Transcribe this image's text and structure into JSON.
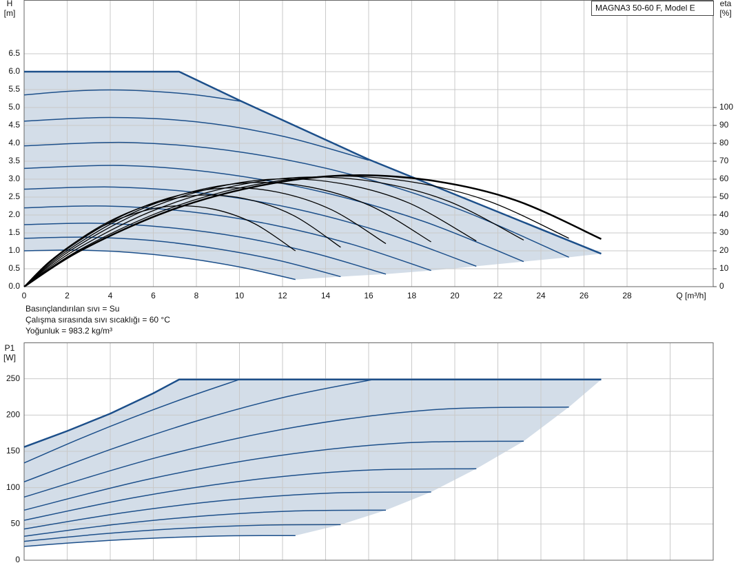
{
  "chart_data": [
    {
      "type": "line",
      "title": "MAGNA3 50-60 F, Model E",
      "ylabel": [
        "H",
        "[m]"
      ],
      "y2label": [
        "eta",
        "[%]"
      ],
      "xlabel": "Q [m³/h]",
      "annotations": [
        "Basınçlandırılan sıvı = Su",
        "Çalışma sırasında sıvı sıcaklığı = 60 °C",
        "Yoğunluk = 983.2 kg/m³"
      ],
      "xlim": [
        0,
        32
      ],
      "xticks": [
        0,
        2,
        4,
        6,
        8,
        10,
        12,
        14,
        16,
        18,
        20,
        22,
        24,
        26,
        28
      ],
      "xtick_labels": true,
      "ylim": [
        0,
        8
      ],
      "yticks": [
        {
          "value": 0,
          "label": "0.0"
        },
        0.5,
        {
          "value": 1,
          "label": "1.0"
        },
        1.5,
        {
          "value": 2,
          "label": "2.0"
        },
        2.5,
        {
          "value": 3,
          "label": "3.0"
        },
        3.5,
        {
          "value": 4,
          "label": "4.0"
        },
        4.5,
        {
          "value": 5,
          "label": "5.0"
        },
        5.5,
        {
          "value": 6,
          "label": "6.0"
        },
        6.5
      ],
      "y2lim": [
        0,
        160
      ],
      "y2ticks": [
        0,
        10,
        20,
        30,
        40,
        50,
        60,
        70,
        80,
        90,
        100
      ],
      "grid": true,
      "fill_color": "#d3dde8",
      "series": [
        {
          "color": "#1c4f8a",
          "line_width": 2.5,
          "smooth": false,
          "x": [
            0,
            7.2,
            10.1,
            16,
            26.8
          ],
          "values": [
            6,
            6,
            5.17,
            3.55,
            0.92
          ]
        },
        {
          "color": "#1c4f8a",
          "line_width": 1.5,
          "smooth": true,
          "x": [
            0,
            2,
            4,
            6,
            8,
            10.1
          ],
          "values": [
            5.35,
            5.45,
            5.49,
            5.45,
            5.35,
            5.17
          ]
        },
        {
          "color": "#1c4f8a",
          "line_width": 1.5,
          "smooth": true,
          "x": [
            0,
            4,
            8,
            12,
            16
          ],
          "values": [
            4.62,
            4.72,
            4.6,
            4.2,
            3.53
          ]
        },
        {
          "color": "#1c4f8a",
          "line_width": 1.5,
          "smooth": true,
          "x": [
            0,
            5.06,
            10.12,
            15.18,
            20.24,
            25.3
          ],
          "values": [
            3.93,
            4.02,
            3.75,
            3.13,
            2.15,
            0.82
          ]
        },
        {
          "color": "#1c4f8a",
          "line_width": 1.5,
          "smooth": true,
          "x": [
            0,
            4.64,
            9.28,
            13.92,
            18.56,
            23.2
          ],
          "values": [
            3.3,
            3.38,
            3.15,
            2.63,
            1.82,
            0.7
          ]
        },
        {
          "color": "#1c4f8a",
          "line_width": 1.5,
          "smooth": true,
          "x": [
            0,
            4.2,
            8.4,
            12.6,
            16.8,
            21
          ],
          "values": [
            2.72,
            2.78,
            2.6,
            2.17,
            1.49,
            0.57
          ]
        },
        {
          "color": "#1c4f8a",
          "line_width": 1.5,
          "smooth": true,
          "x": [
            0,
            3.78,
            7.56,
            11.34,
            15.12,
            18.9
          ],
          "values": [
            2.2,
            2.25,
            2.1,
            1.75,
            1.2,
            0.45
          ]
        },
        {
          "color": "#1c4f8a",
          "line_width": 1.5,
          "smooth": true,
          "x": [
            0,
            3.36,
            6.72,
            10.08,
            13.44,
            16.8
          ],
          "values": [
            1.73,
            1.77,
            1.65,
            1.38,
            0.94,
            0.35
          ]
        },
        {
          "color": "#1c4f8a",
          "line_width": 1.5,
          "smooth": true,
          "x": [
            0,
            2.94,
            5.88,
            8.82,
            11.76,
            14.7
          ],
          "values": [
            1.35,
            1.38,
            1.29,
            1.07,
            0.74,
            0.28
          ]
        },
        {
          "color": "#1c4f8a",
          "line_width": 1.5,
          "smooth": true,
          "x": [
            0,
            2.52,
            5.04,
            7.56,
            10.08,
            12.6
          ],
          "values": [
            1.0,
            1.02,
            0.95,
            0.79,
            0.54,
            0.2
          ]
        },
        {
          "color": "#000000",
          "line_width": 1.3,
          "smooth": true,
          "axis": "y2",
          "x": [
            0,
            1.26,
            3.15,
            5.04,
            6.93,
            8.82,
            10.71,
            12.6
          ],
          "values": [
            0,
            14.9,
            30.6,
            40.5,
            45,
            43.2,
            35.1,
            20
          ]
        },
        {
          "color": "#000000",
          "line_width": 1.3,
          "smooth": true,
          "axis": "y2",
          "x": [
            0,
            1.47,
            3.68,
            5.88,
            8.09,
            10.29,
            12.5,
            14.7
          ],
          "values": [
            0,
            16.8,
            34.7,
            45.9,
            51,
            49,
            39.8,
            22
          ]
        },
        {
          "color": "#000000",
          "line_width": 1.3,
          "smooth": true,
          "axis": "y2",
          "x": [
            0,
            1.68,
            4.2,
            6.72,
            9.24,
            11.76,
            14.28,
            16.8
          ],
          "values": [
            0,
            18.2,
            37.4,
            49.5,
            55,
            52.8,
            42.9,
            24
          ]
        },
        {
          "color": "#000000",
          "line_width": 1.3,
          "smooth": true,
          "axis": "y2",
          "x": [
            0,
            1.89,
            4.73,
            7.56,
            10.4,
            13.23,
            16.07,
            18.9
          ],
          "values": [
            0,
            19.1,
            39.4,
            52.2,
            58,
            55.7,
            45.2,
            25
          ]
        },
        {
          "color": "#000000",
          "line_width": 1.3,
          "smooth": true,
          "axis": "y2",
          "x": [
            0,
            2.1,
            5.25,
            8.4,
            11.55,
            14.7,
            17.85,
            21
          ],
          "values": [
            0,
            19.8,
            40.8,
            54,
            60,
            57.6,
            46.8,
            25.5
          ]
        },
        {
          "color": "#000000",
          "line_width": 1.3,
          "smooth": true,
          "axis": "y2",
          "x": [
            0,
            2.32,
            5.8,
            9.28,
            12.76,
            16.24,
            19.72,
            23.2
          ],
          "values": [
            0,
            20.1,
            41.5,
            54.9,
            61,
            58.6,
            47.6,
            26
          ]
        },
        {
          "color": "#000000",
          "line_width": 1.3,
          "smooth": true,
          "axis": "y2",
          "x": [
            0,
            2.53,
            6.33,
            10.12,
            13.92,
            17.71,
            21.51,
            25.3
          ],
          "values": [
            0,
            20.3,
            41.8,
            55.4,
            61.5,
            59,
            48,
            27
          ]
        },
        {
          "color": "#000000",
          "line_width": 2.5,
          "smooth": true,
          "axis": "y2",
          "x": [
            0,
            2.68,
            6.7,
            10.72,
            14.74,
            18.76,
            22.78,
            26.8
          ],
          "values": [
            0,
            20.5,
            42.2,
            55.8,
            62,
            59.5,
            48.4,
            26.6
          ]
        }
      ]
    },
    {
      "type": "line",
      "ylabel": [
        "P1",
        "[W]"
      ],
      "xlim": [
        0,
        32
      ],
      "xticks": [
        0,
        2,
        4,
        6,
        8,
        10,
        12,
        14,
        16,
        18,
        20,
        22,
        24,
        26,
        28,
        30
      ],
      "xtick_labels": false,
      "ylim": [
        0,
        300
      ],
      "yticks": [
        0,
        50,
        100,
        150,
        200,
        250
      ],
      "grid": true,
      "fill_color": "#d3dde8",
      "series": [
        {
          "color": "#1c4f8a",
          "line_width": 2.5,
          "smooth": false,
          "x": [
            0,
            2,
            4,
            6,
            7.2,
            26.8
          ],
          "values": [
            156,
            178,
            202,
            230,
            249,
            249
          ]
        },
        {
          "color": "#1c4f8a",
          "line_width": 1.5,
          "smooth": true,
          "x": [
            0,
            2.5,
            5,
            7.5,
            10
          ],
          "values": [
            134,
            166.2,
            196.1,
            223.7,
            249
          ]
        },
        {
          "color": "#1c4f8a",
          "line_width": 1.5,
          "smooth": true,
          "x": [
            0,
            4.05,
            8.1,
            12.15,
            16.2
          ],
          "values": [
            108,
            153,
            192.6,
            225,
            249
          ]
        },
        {
          "color": "#1c4f8a",
          "line_width": 1.5,
          "smooth": true,
          "x": [
            0,
            6.33,
            12.65,
            18.98,
            25.3
          ],
          "values": [
            87,
            142.8,
            183.7,
            207.3,
            211
          ]
        },
        {
          "color": "#1c4f8a",
          "line_width": 1.5,
          "smooth": true,
          "x": [
            0,
            5.8,
            11.6,
            17.4,
            23.2
          ],
          "values": [
            69,
            111.8,
            143.1,
            161.2,
            164
          ]
        },
        {
          "color": "#1c4f8a",
          "line_width": 1.5,
          "smooth": true,
          "x": [
            0,
            5.25,
            10.5,
            15.75,
            21
          ],
          "values": [
            55,
            87,
            110.4,
            123.9,
            126
          ]
        },
        {
          "color": "#1c4f8a",
          "line_width": 1.5,
          "smooth": true,
          "x": [
            0,
            4.73,
            9.45,
            14.18,
            18.9
          ],
          "values": [
            43,
            66,
            82.8,
            92.5,
            94
          ]
        },
        {
          "color": "#1c4f8a",
          "line_width": 1.5,
          "smooth": true,
          "x": [
            0,
            4.2,
            8.4,
            12.6,
            16.8
          ],
          "values": [
            33,
            49.2,
            61.1,
            67.9,
            69
          ]
        },
        {
          "color": "#1c4f8a",
          "line_width": 1.5,
          "smooth": true,
          "x": [
            0,
            3.68,
            7.35,
            11.03,
            14.7
          ],
          "values": [
            26,
            36.4,
            43.9,
            48.3,
            49
          ]
        },
        {
          "color": "#1c4f8a",
          "line_width": 1.5,
          "smooth": true,
          "x": [
            0,
            3.15,
            6.3,
            9.45,
            12.6
          ],
          "values": [
            19,
            25.8,
            30.7,
            33.6,
            34
          ]
        }
      ]
    }
  ]
}
